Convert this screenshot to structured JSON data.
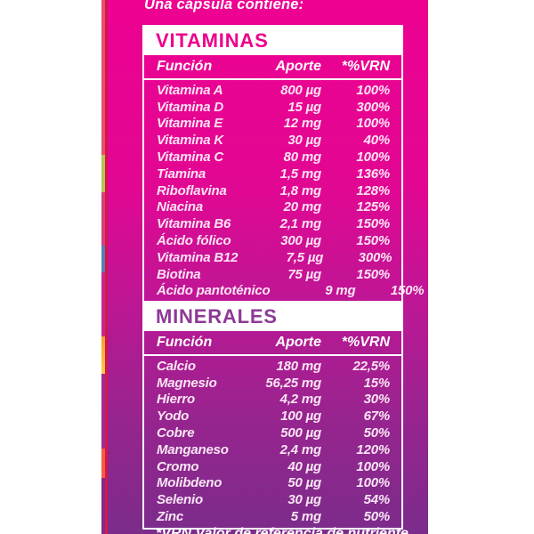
{
  "colors": {
    "accent-pink": "#ec008c",
    "accent-purple": "#8e3996",
    "label-top": "#ee0191",
    "label-bottom": "#7b2c8b",
    "edge-red": "#d6164b"
  },
  "intro_text": "Una cápsula contiene:",
  "footnote_text": "*VRN Valor de referencia de nutriente",
  "tables": [
    {
      "title": "VITAMINAS",
      "columns": [
        "Función",
        "Aporte",
        "*%VRN"
      ],
      "rows": [
        [
          "Vitamina A",
          "800 µg",
          "100%"
        ],
        [
          "Vitamina D",
          "15 µg",
          "300%"
        ],
        [
          "Vitamina E",
          "12 mg",
          "100%"
        ],
        [
          "Vitamina K",
          "30 µg",
          "40%"
        ],
        [
          "Vitamina C",
          "80 mg",
          "100%"
        ],
        [
          "Tiamina",
          "1,5 mg",
          "136%"
        ],
        [
          "Riboflavina",
          "1,8 mg",
          "128%"
        ],
        [
          "Niacina",
          "20 mg",
          "125%"
        ],
        [
          "Vitamina B6",
          "2,1 mg",
          "150%"
        ],
        [
          "Ácido fólico",
          "300 µg",
          "150%"
        ],
        [
          "Vitamina B12",
          "7,5 µg",
          "300%"
        ],
        [
          "Biotina",
          "75 µg",
          "150%"
        ],
        [
          "Ácido pantoténico",
          "9 mg",
          "150%"
        ]
      ]
    },
    {
      "title": "MINERALES",
      "columns": [
        "Función",
        "Aporte",
        "*%VRN"
      ],
      "rows": [
        [
          "Calcio",
          "180 mg",
          "22,5%"
        ],
        [
          "Magnesio",
          "56,25 mg",
          "15%"
        ],
        [
          "Hierro",
          "4,2 mg",
          "30%"
        ],
        [
          "Yodo",
          "100 µg",
          "67%"
        ],
        [
          "Cobre",
          "500 µg",
          "50%"
        ],
        [
          "Manganeso",
          "2,4 mg",
          "120%"
        ],
        [
          "Cromo",
          "40 µg",
          "100%"
        ],
        [
          "Molibdeno",
          "50 µg",
          "100%"
        ],
        [
          "Selenio",
          "30 µg",
          "54%"
        ],
        [
          "Zinc",
          "5 mg",
          "50%"
        ]
      ]
    }
  ]
}
